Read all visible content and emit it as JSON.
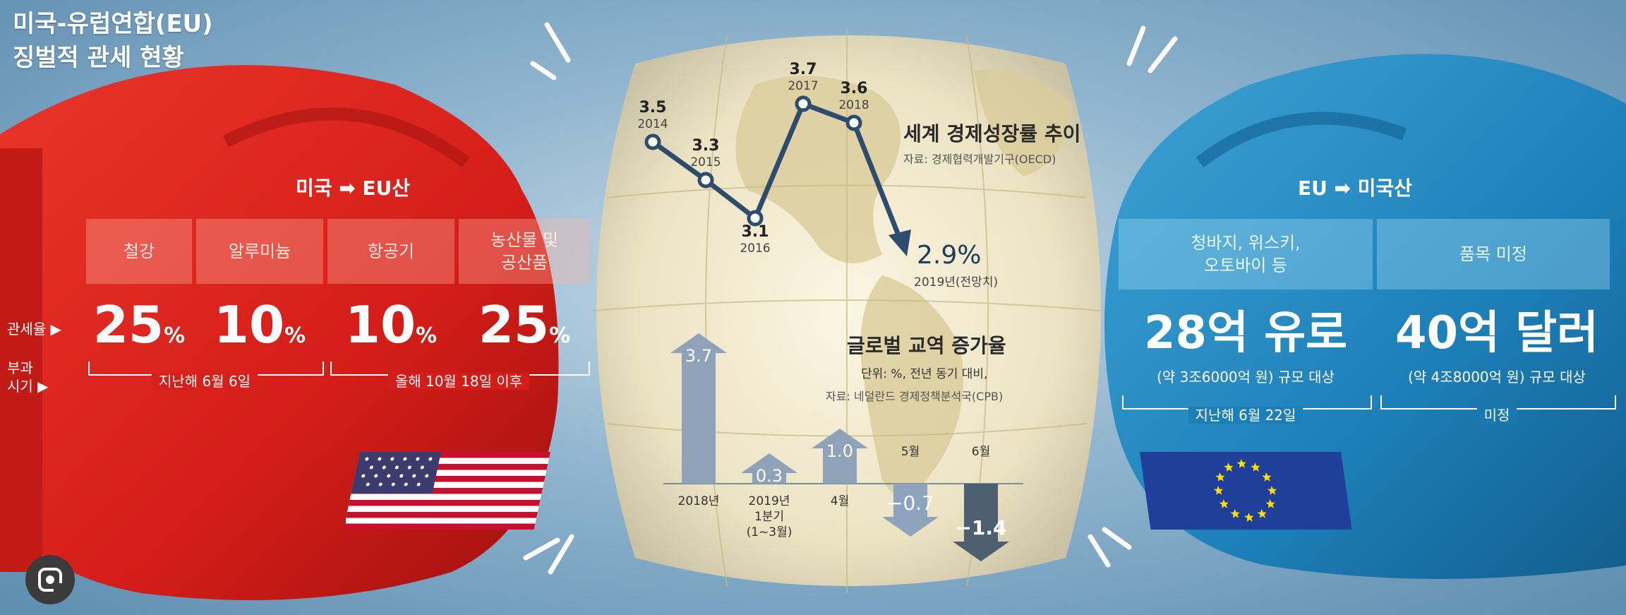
{
  "title": {
    "line1": "미국-유럽연합(EU)",
    "line2": "징벌적 관세 현황"
  },
  "us_side": {
    "header": "미국 ➡ EU산",
    "items": [
      {
        "product": "철강",
        "rate": "25"
      },
      {
        "product": "알루미늄",
        "rate": "10"
      },
      {
        "product": "항공기",
        "rate": "10"
      },
      {
        "product": "농산물 및\n공산품",
        "rate": "25"
      }
    ],
    "percent_sign": "%",
    "row_label_rate": "관세율 ▶",
    "row_label_time": "부과\n시기 ▶",
    "period1": "지난해 6월 6일",
    "period2": "올해 10월 18일 이후",
    "flag_icon": "us-flag-icon"
  },
  "eu_side": {
    "header": "EU ➡ 미국산",
    "items": [
      {
        "product": "청바지, 위스키,\n오토바이 등",
        "amount": "28억 유로",
        "note": "(약 3조6000억 원) 규모 대상",
        "period": "지난해 6월 22일"
      },
      {
        "product": "품목 미정",
        "amount": "40억 달러",
        "note": "(약 4조8000억 원) 규모 대상",
        "period": "미정"
      }
    ],
    "flag_icon": "eu-flag-icon"
  },
  "chart_data": [
    {
      "type": "line",
      "title": "세계 경제성장률 추이",
      "source": "자료: 경제협력개발기구(OECD)",
      "x": [
        "2014",
        "2015",
        "2016",
        "2017",
        "2018",
        "2019년(전망치)"
      ],
      "values": [
        3.5,
        3.3,
        3.1,
        3.7,
        3.6,
        2.9
      ],
      "value_labels": [
        "3.5",
        "3.3",
        "3.1",
        "3.7",
        "3.6",
        "2.9%"
      ],
      "ylim": [
        2.8,
        3.8
      ]
    },
    {
      "type": "bar",
      "title": "글로벌 교역 증가율",
      "unit": "단위: %, 전년 동기 대비,",
      "source": "자료: 네덜란드 경제정책분석국(CPB)",
      "categories": [
        "2018년",
        "2019년\n1분기\n(1~3월)",
        "4월",
        "5월",
        "6월"
      ],
      "values": [
        3.7,
        0.3,
        1.0,
        -0.7,
        -1.4
      ],
      "value_labels": [
        "3.7",
        "0.3",
        "1.0",
        "−0.7",
        "−1.4"
      ],
      "ylim": [
        -1.6,
        4.0
      ]
    }
  ],
  "colors": {
    "glove_red": "#e3261f",
    "glove_blue": "#1f86bf",
    "bar_grey": "#8fa3b8",
    "line_navy": "#2e4d6e"
  }
}
